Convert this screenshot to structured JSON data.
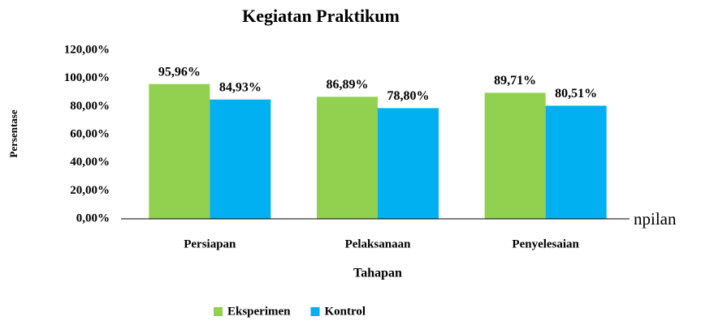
{
  "chart_data": {
    "type": "bar",
    "title": "Kegiatan Praktikum",
    "categories": [
      "Persiapan",
      "Pelaksanaan",
      "Penyelesaian"
    ],
    "series": [
      {
        "name": "Eksperimen",
        "color": "#92d050",
        "values": [
          95.96,
          86.89,
          89.71
        ],
        "value_labels": [
          "95,96%",
          "86,89%",
          "89,71%"
        ]
      },
      {
        "name": "Kontrol",
        "color": "#00b0f0",
        "values": [
          84.93,
          78.8,
          80.51
        ],
        "value_labels": [
          "84,93%",
          "78,80%",
          "80,51%"
        ]
      }
    ],
    "xlabel": "Tahapan",
    "ylabel": "Persentase",
    "ylim": [
      0,
      120
    ],
    "yticks": [
      {
        "value": 0,
        "label": "0,00%"
      },
      {
        "value": 20,
        "label": "20,00%"
      },
      {
        "value": 40,
        "label": "40,00%"
      },
      {
        "value": 60,
        "label": "60,00%"
      },
      {
        "value": 80,
        "label": "80,00%"
      },
      {
        "value": 100,
        "label": "100,00%"
      },
      {
        "value": 120,
        "label": "120,00%"
      }
    ],
    "grid": false,
    "legend": "bottom",
    "annotation": "npilan"
  }
}
